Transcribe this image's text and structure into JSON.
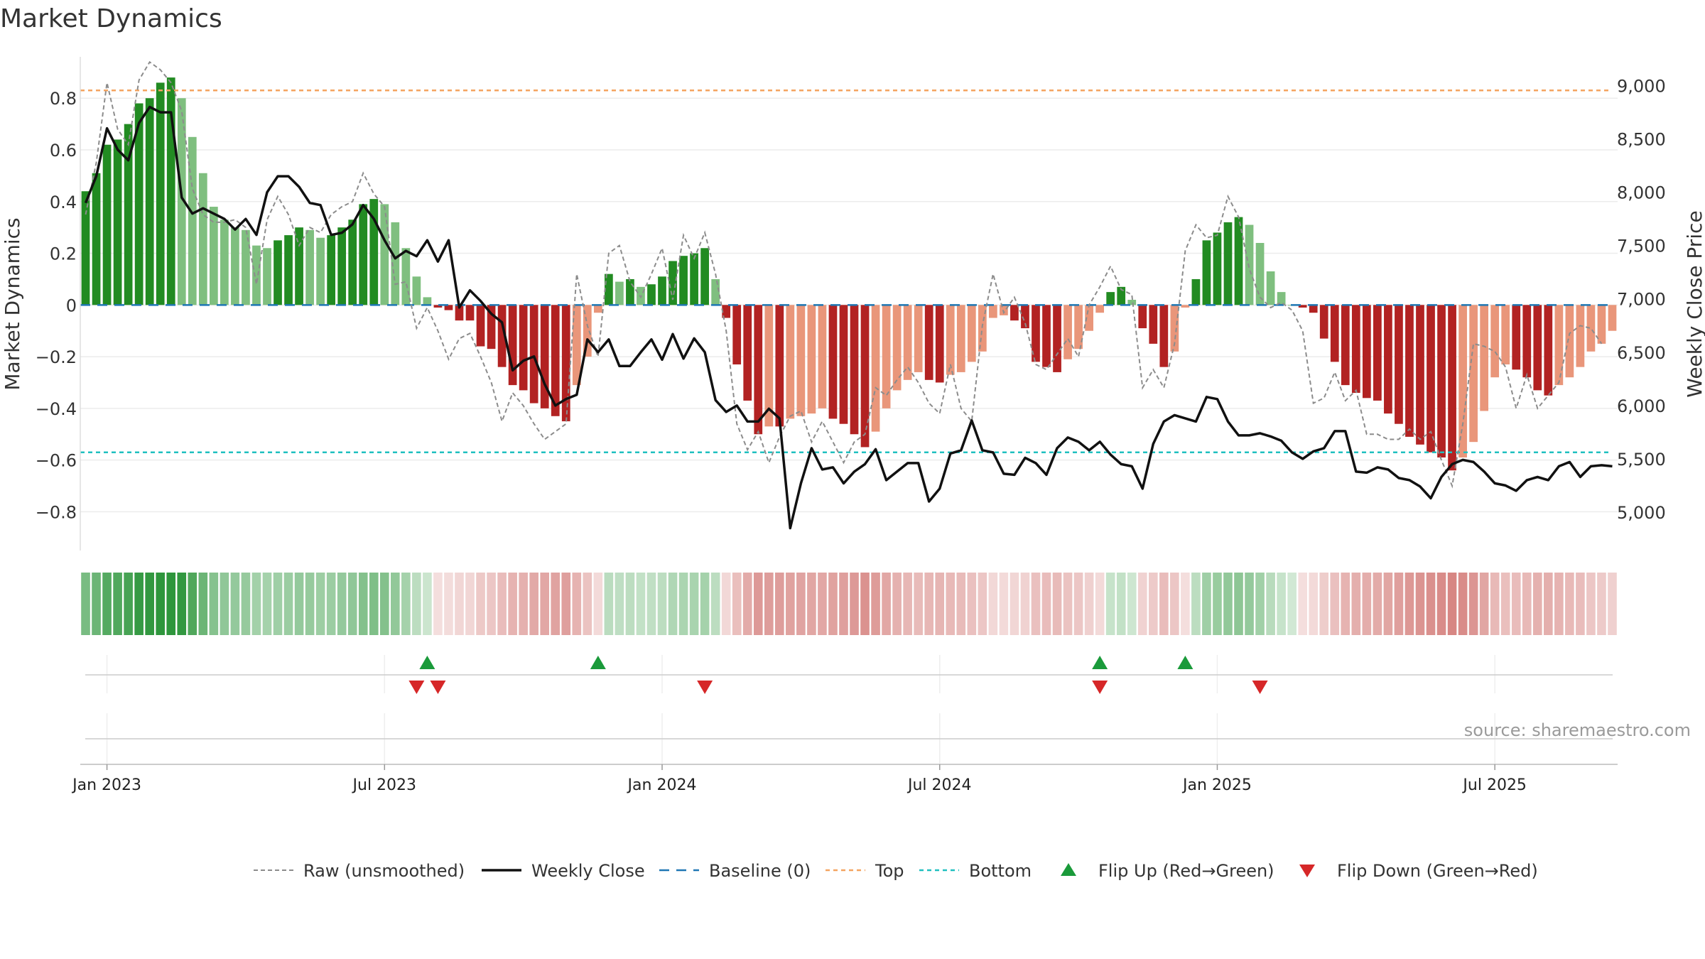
{
  "chart_data": {
    "type": "bar",
    "title": "Market Dynamics",
    "ylabel_left": "Market Dynamics",
    "ylabel_right": "Weekly Close Price",
    "source": "source: sharemaestro.com",
    "y_left_ticks": [
      "0.8",
      "0.6",
      "0.4",
      "0.2",
      "0",
      "−0.2",
      "−0.4",
      "−0.6",
      "−0.8"
    ],
    "y_left_tick_values": [
      0.8,
      0.6,
      0.4,
      0.2,
      0,
      -0.2,
      -0.4,
      -0.6,
      -0.8
    ],
    "y_right_ticks": [
      "9,000",
      "8,500",
      "8,000",
      "7,500",
      "7,000",
      "6,500",
      "6,000",
      "5,500",
      "5,000"
    ],
    "y_right_tick_values": [
      9000,
      8500,
      8000,
      7500,
      7000,
      6500,
      6000,
      5500,
      5000
    ],
    "ylim_left": [
      -0.95,
      0.96
    ],
    "ylim_right": [
      4640,
      9270
    ],
    "x_ticks": [
      "Jan 2023",
      "Jul 2023",
      "Jan 2024",
      "Jul 2024",
      "Jan 2025",
      "Jul 2025"
    ],
    "x_tick_week_index": [
      2.5,
      28.5,
      54.5,
      80.5,
      106.5,
      132.5
    ],
    "top_line": 0.83,
    "bottom_line": -0.57,
    "baseline": 0,
    "weeks": 144,
    "market_dynamics": [
      0.44,
      0.51,
      0.62,
      0.64,
      0.7,
      0.78,
      0.8,
      0.86,
      0.88,
      0.8,
      0.65,
      0.51,
      0.38,
      0.33,
      0.3,
      0.29,
      0.23,
      0.22,
      0.25,
      0.27,
      0.3,
      0.29,
      0.26,
      0.27,
      0.3,
      0.33,
      0.39,
      0.41,
      0.39,
      0.32,
      0.22,
      0.11,
      0.03,
      -0.01,
      -0.02,
      -0.06,
      -0.06,
      -0.16,
      -0.17,
      -0.24,
      -0.31,
      -0.33,
      -0.38,
      -0.4,
      -0.43,
      -0.45,
      -0.31,
      -0.2,
      -0.03,
      0.12,
      0.09,
      0.1,
      0.07,
      0.08,
      0.11,
      0.17,
      0.19,
      0.2,
      0.22,
      0.1,
      -0.05,
      -0.23,
      -0.37,
      -0.5,
      -0.47,
      -0.47,
      -0.44,
      -0.43,
      -0.42,
      -0.4,
      -0.44,
      -0.46,
      -0.5,
      -0.55,
      -0.49,
      -0.4,
      -0.33,
      -0.29,
      -0.26,
      -0.29,
      -0.3,
      -0.27,
      -0.26,
      -0.22,
      -0.18,
      -0.05,
      -0.04,
      -0.06,
      -0.09,
      -0.22,
      -0.24,
      -0.26,
      -0.21,
      -0.17,
      -0.1,
      -0.03,
      0.05,
      0.07,
      0.02,
      -0.09,
      -0.15,
      -0.24,
      -0.18,
      -0.01,
      0.1,
      0.25,
      0.28,
      0.32,
      0.34,
      0.31,
      0.24,
      0.13,
      0.05,
      0.0,
      -0.01,
      -0.03,
      -0.13,
      -0.22,
      -0.31,
      -0.34,
      -0.36,
      -0.37,
      -0.42,
      -0.46,
      -0.51,
      -0.54,
      -0.57,
      -0.59,
      -0.64,
      -0.59,
      -0.53,
      -0.41,
      -0.28,
      -0.23,
      -0.25,
      -0.28,
      -0.33,
      -0.35,
      -0.31,
      -0.28,
      -0.24,
      -0.18,
      -0.15,
      -0.1
    ],
    "raw_unsmoothed": [
      0.35,
      0.55,
      0.86,
      0.68,
      0.62,
      0.87,
      0.94,
      0.91,
      0.86,
      0.75,
      0.45,
      0.35,
      0.32,
      0.32,
      0.33,
      0.3,
      0.08,
      0.33,
      0.42,
      0.35,
      0.23,
      0.3,
      0.28,
      0.35,
      0.38,
      0.4,
      0.51,
      0.43,
      0.38,
      0.08,
      0.09,
      -0.09,
      -0.01,
      -0.1,
      -0.21,
      -0.13,
      -0.11,
      -0.2,
      -0.3,
      -0.45,
      -0.34,
      -0.39,
      -0.46,
      -0.52,
      -0.49,
      -0.46,
      0.12,
      -0.08,
      -0.2,
      0.2,
      0.23,
      0.09,
      0.03,
      0.12,
      0.22,
      0.02,
      0.27,
      0.18,
      0.28,
      0.12,
      -0.1,
      -0.46,
      -0.56,
      -0.49,
      -0.61,
      -0.51,
      -0.43,
      -0.41,
      -0.53,
      -0.45,
      -0.53,
      -0.61,
      -0.53,
      -0.5,
      -0.32,
      -0.35,
      -0.29,
      -0.24,
      -0.3,
      -0.38,
      -0.42,
      -0.23,
      -0.4,
      -0.45,
      -0.08,
      0.12,
      -0.03,
      0.03,
      -0.07,
      -0.23,
      -0.25,
      -0.19,
      -0.13,
      -0.2,
      0.0,
      0.07,
      0.15,
      0.06,
      0.04,
      -0.32,
      -0.25,
      -0.32,
      -0.15,
      0.21,
      0.31,
      0.26,
      0.27,
      0.42,
      0.34,
      0.14,
      0.03,
      -0.01,
      0.01,
      -0.02,
      -0.1,
      -0.38,
      -0.36,
      -0.26,
      -0.37,
      -0.33,
      -0.5,
      -0.5,
      -0.52,
      -0.52,
      -0.48,
      -0.52,
      -0.49,
      -0.6,
      -0.7,
      -0.46,
      -0.15,
      -0.16,
      -0.18,
      -0.24,
      -0.4,
      -0.27,
      -0.4,
      -0.35,
      -0.3,
      -0.11,
      -0.08,
      -0.09,
      -0.15
    ],
    "weekly_close": [
      7900,
      8150,
      8600,
      8400,
      8300,
      8650,
      8800,
      8750,
      8750,
      7950,
      7800,
      7850,
      7800,
      7750,
      7650,
      7750,
      7600,
      8000,
      8150,
      8150,
      8050,
      7900,
      7880,
      7600,
      7620,
      7700,
      7880,
      7750,
      7550,
      7380,
      7450,
      7400,
      7550,
      7350,
      7550,
      6920,
      7080,
      6980,
      6860,
      6780,
      6330,
      6420,
      6460,
      6200,
      6000,
      6060,
      6100,
      6620,
      6500,
      6620,
      6370,
      6370,
      6500,
      6620,
      6430,
      6670,
      6440,
      6630,
      6500,
      6050,
      5940,
      6000,
      5850,
      5850,
      5970,
      5880,
      4850,
      5270,
      5600,
      5400,
      5420,
      5270,
      5380,
      5450,
      5590,
      5300,
      5380,
      5460,
      5460,
      5100,
      5220,
      5550,
      5580,
      5860,
      5580,
      5560,
      5360,
      5350,
      5510,
      5460,
      5350,
      5600,
      5700,
      5660,
      5580,
      5660,
      5540,
      5450,
      5430,
      5220,
      5640,
      5850,
      5910,
      5880,
      5850,
      6080,
      6060,
      5850,
      5720,
      5720,
      5740,
      5710,
      5670,
      5560,
      5500,
      5570,
      5600,
      5760,
      5760,
      5380,
      5370,
      5420,
      5400,
      5320,
      5300,
      5240,
      5130,
      5330,
      5450,
      5490,
      5470,
      5380,
      5270,
      5250,
      5200,
      5300,
      5330,
      5300,
      5430,
      5470,
      5330,
      5430,
      5440,
      5430
    ],
    "flips_up": [
      32,
      48,
      95,
      103
    ],
    "flips_down": [
      31,
      33,
      58,
      95,
      110
    ],
    "legend": [
      "Raw (unsmoothed)",
      "Weekly Close",
      "Baseline (0)",
      "Top",
      "Bottom",
      "Flip Up (Red→Green)",
      "Flip Down (Green→Red)"
    ],
    "grid": true,
    "legend_position": "bottom-center"
  },
  "colors": {
    "strong_green": "#228b22",
    "light_green": "#7fbf7f",
    "strong_red": "#b22222",
    "light_red": "#e9967a",
    "raw_line": "#8c8c8c",
    "close_line": "#111111",
    "baseline": "#1f77b4",
    "top_line": "#f4a460",
    "bottom_line": "#20c0c0",
    "flip_up": "#1a9a3a",
    "flip_down": "#d62728"
  }
}
